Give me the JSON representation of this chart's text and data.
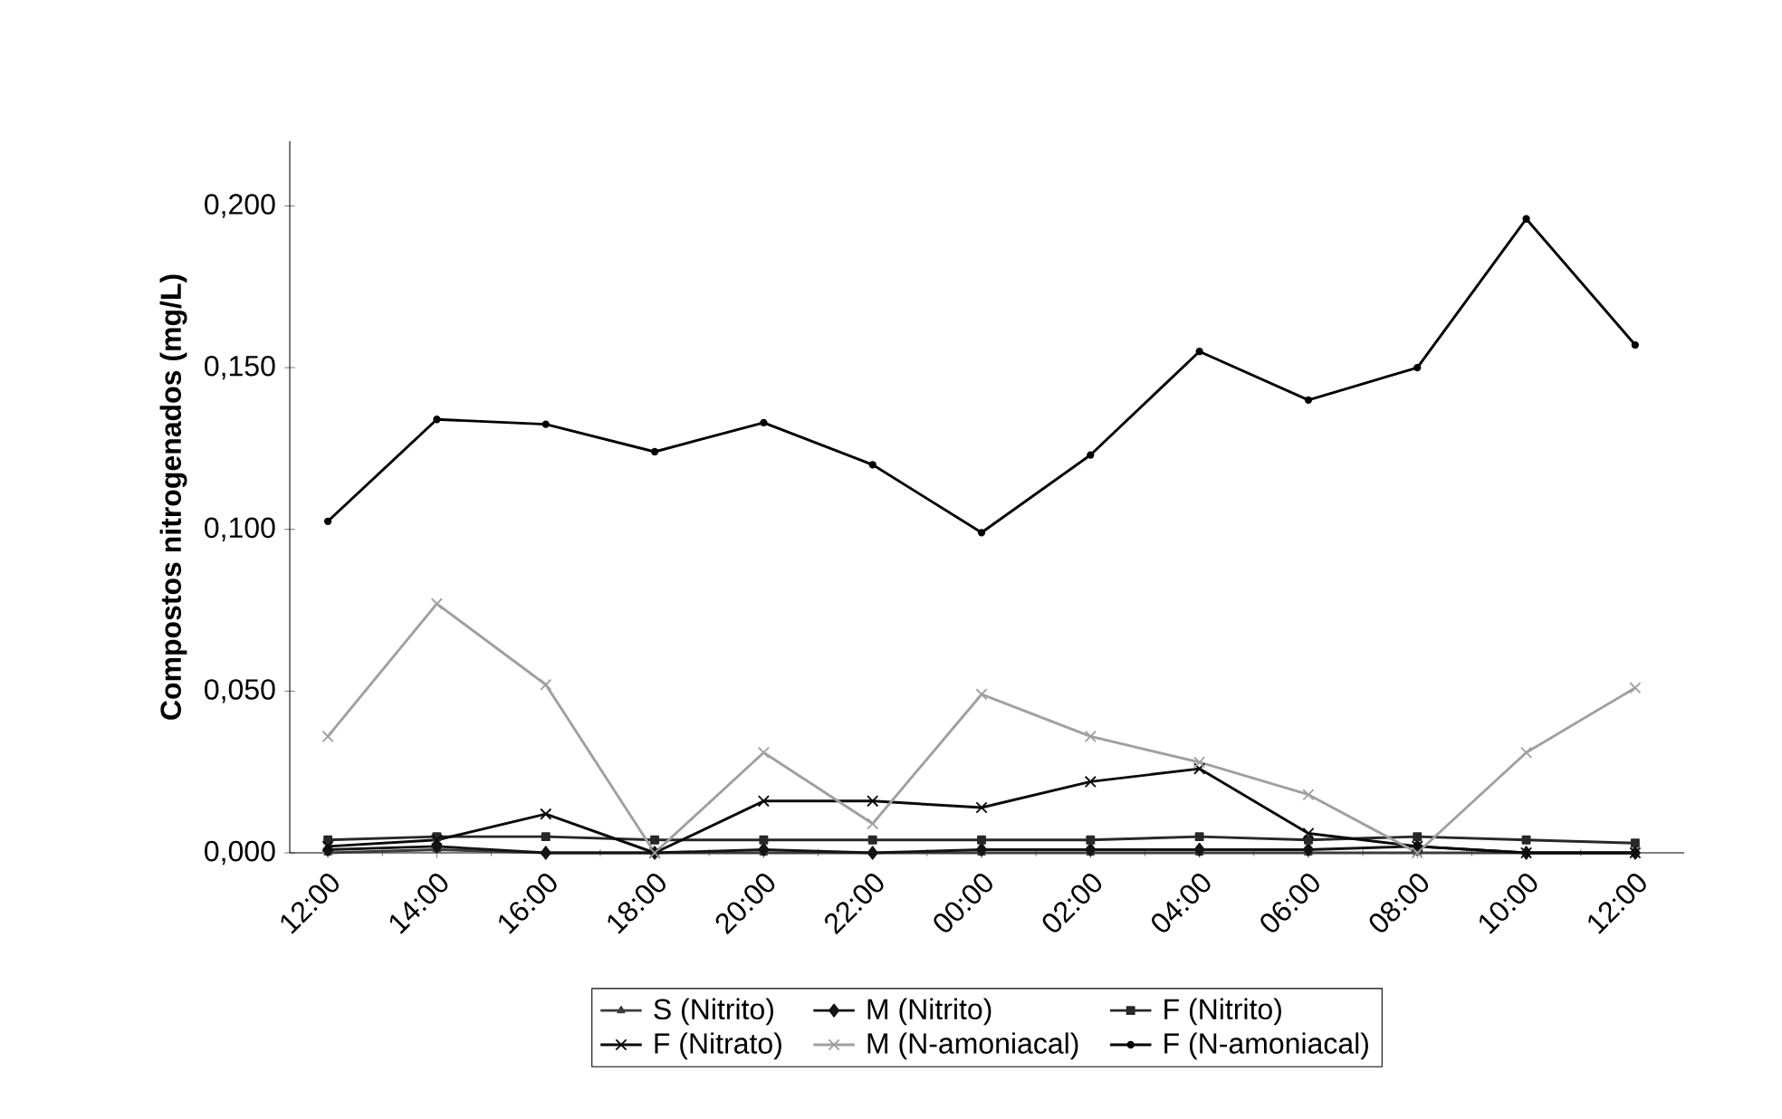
{
  "chart_data": {
    "type": "line",
    "ylabel": "Compostos nitrogenados (mg/L)",
    "categories": [
      "12:00",
      "14:00",
      "16:00",
      "18:00",
      "20:00",
      "22:00",
      "00:00",
      "02:00",
      "04:00",
      "06:00",
      "08:00",
      "10:00",
      "12:00"
    ],
    "ylim": [
      0,
      0.22
    ],
    "yticks": [
      {
        "value": 0,
        "label": "0,000"
      },
      {
        "value": 0.05,
        "label": "0,050"
      },
      {
        "value": 0.1,
        "label": "0,100"
      },
      {
        "value": 0.15,
        "label": "0,150"
      },
      {
        "value": 0.2,
        "label": "0,200"
      }
    ],
    "grid": false,
    "legend": "bottom",
    "series": [
      {
        "name": "S (Nitrito)",
        "color": "#3c3c3c",
        "marker": "triangle",
        "values": [
          0.0,
          0.001,
          0.0,
          0.0,
          0.0,
          0.0,
          0.0,
          0.0,
          0.0,
          0.0,
          0.0,
          0.0,
          0.0
        ]
      },
      {
        "name": "M (Nitrito)",
        "color": "#141414",
        "marker": "diamond",
        "values": [
          0.001,
          0.002,
          0.0,
          0.0,
          0.001,
          0.0,
          0.001,
          0.001,
          0.001,
          0.001,
          0.002,
          0.0,
          0.0
        ]
      },
      {
        "name": "F (Nitrito)",
        "color": "#282828",
        "marker": "square",
        "values": [
          0.004,
          0.005,
          0.005,
          0.004,
          0.004,
          0.004,
          0.004,
          0.004,
          0.005,
          0.004,
          0.005,
          0.004,
          0.003
        ]
      },
      {
        "name": "F (Nitrato)",
        "color": "#0a0a0a",
        "marker": "cross",
        "values": [
          0.002,
          0.004,
          0.012,
          0.0,
          0.016,
          0.016,
          0.014,
          0.022,
          0.026,
          0.006,
          0.002,
          0.0,
          0.0
        ]
      },
      {
        "name": "M (N-amoniacal)",
        "color": "#a0a0a0",
        "marker": "cross",
        "values": [
          0.036,
          0.077,
          0.052,
          0.0,
          0.031,
          0.009,
          0.049,
          0.036,
          0.028,
          0.018,
          0.0,
          0.031,
          0.051
        ]
      },
      {
        "name": "F (N-amoniacal)",
        "color": "#000000",
        "marker": "circle",
        "values": [
          0.1025,
          0.134,
          0.1325,
          0.124,
          0.133,
          0.12,
          0.099,
          0.123,
          0.155,
          0.14,
          0.15,
          0.196,
          0.157
        ]
      }
    ]
  }
}
